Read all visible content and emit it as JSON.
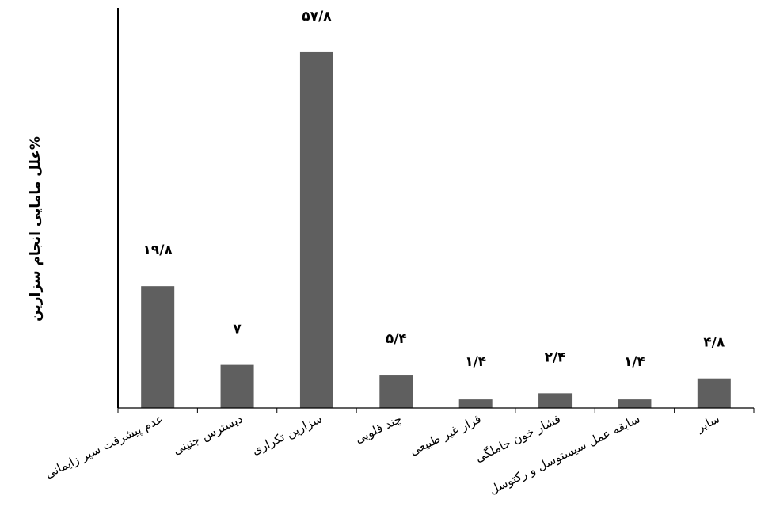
{
  "chart_data": {
    "type": "bar",
    "title": "",
    "xlabel": "",
    "ylabel": "علل مامایی انجام سزارین%",
    "ylim": [
      0,
      65
    ],
    "grid": false,
    "legend": "none",
    "bar_color": "#5f5f5f",
    "categories": [
      "عدم پیشرفت سیر زایمانی",
      "دیسترس جنینی",
      "سزارین تکراری",
      "چند قلویی",
      "قرار غیر طبیعی",
      "فشار خون حاملگی",
      "سابقه عمل سیستوسل و رکتوسل",
      "سایر"
    ],
    "values": [
      19.8,
      7,
      57.8,
      5.4,
      1.4,
      2.4,
      1.4,
      4.8
    ],
    "value_labels": [
      "۱۹/۸",
      "۷",
      "۵۷/۸",
      "۵/۴",
      "۱/۴",
      "۲/۴",
      "۱/۴",
      "۴/۸"
    ]
  }
}
